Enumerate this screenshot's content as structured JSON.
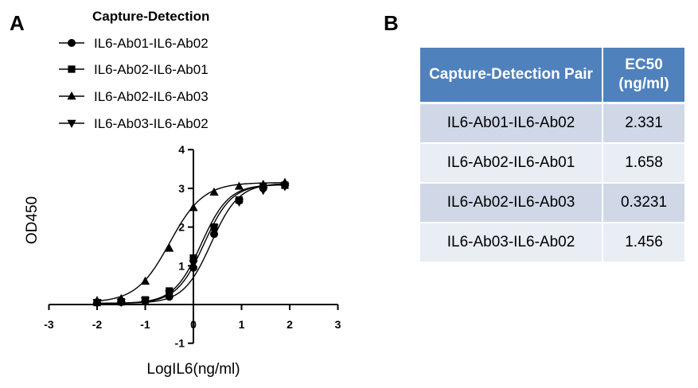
{
  "panel_a_label": "A",
  "panel_b_label": "B",
  "chart_data": {
    "type": "line",
    "legend_title": "Capture-Detection",
    "legend_placement": "top",
    "xlabel": "LogIL6(ng/ml)",
    "ylabel": "OD450",
    "xlim": [
      -3,
      3
    ],
    "ylim": [
      -1,
      4
    ],
    "xticks": [
      "-3",
      "-2",
      "-1",
      "0",
      "1",
      "2",
      "3"
    ],
    "yticks": [
      "-1",
      "1",
      "2",
      "3",
      "4"
    ],
    "grid": false,
    "series": [
      {
        "name": "IL6-Ab01-IL6-Ab02",
        "marker": "circle",
        "x": [
          -2,
          -1.5,
          -1,
          -0.5,
          0,
          0.43,
          0.95,
          1.45,
          1.9
        ],
        "y": [
          0.05,
          0.06,
          0.1,
          0.2,
          0.95,
          1.82,
          2.68,
          3.0,
          3.1
        ],
        "fit": {
          "bottom": 0.03,
          "top": 3.13,
          "ec50_log": 0.3675,
          "hill": 1.52
        }
      },
      {
        "name": "IL6-Ab02-IL6-Ab01",
        "marker": "square",
        "x": [
          -2,
          -1.5,
          -1,
          -0.5,
          0,
          0.43,
          0.95,
          1.45,
          1.9
        ],
        "y": [
          0.05,
          0.07,
          0.12,
          0.35,
          1.2,
          2.0,
          2.7,
          3.05,
          3.08
        ],
        "fit": {
          "bottom": 0.03,
          "top": 3.1,
          "ec50_log": 0.2196,
          "hill": 1.52
        }
      },
      {
        "name": "IL6-Ab02-IL6-Ab03",
        "marker": "triangle-up",
        "x": [
          -2,
          -1.5,
          -1,
          -0.5,
          0,
          0.43,
          0.95,
          1.45,
          1.9
        ],
        "y": [
          0.1,
          0.15,
          0.6,
          1.45,
          2.5,
          2.9,
          3.05,
          3.1,
          3.15
        ],
        "fit": {
          "bottom": 0.05,
          "top": 3.15,
          "ec50_log": -0.4907,
          "hill": 1.25
        }
      },
      {
        "name": "IL6-Ab03-IL6-Ab02",
        "marker": "triangle-down",
        "x": [
          -2,
          -1.5,
          -1,
          -0.5,
          0,
          0.43,
          0.95,
          1.45,
          1.9
        ],
        "y": [
          0.05,
          0.06,
          0.1,
          0.28,
          1.05,
          1.98,
          2.65,
          2.95,
          3.05
        ],
        "fit": {
          "bottom": 0.03,
          "top": 3.1,
          "ec50_log": 0.1632,
          "hill": 1.52
        }
      }
    ]
  },
  "table": {
    "headers": [
      "Capture-Detection Pair",
      "EC50 (ng/ml)"
    ],
    "rows": [
      [
        "IL6-Ab01-IL6-Ab02",
        "2.331"
      ],
      [
        "IL6-Ab02-IL6-Ab01",
        "1.658"
      ],
      [
        "IL6-Ab02-IL6-Ab03",
        "0.3231"
      ],
      [
        "IL6-Ab03-IL6-Ab02",
        "1.456"
      ]
    ]
  }
}
